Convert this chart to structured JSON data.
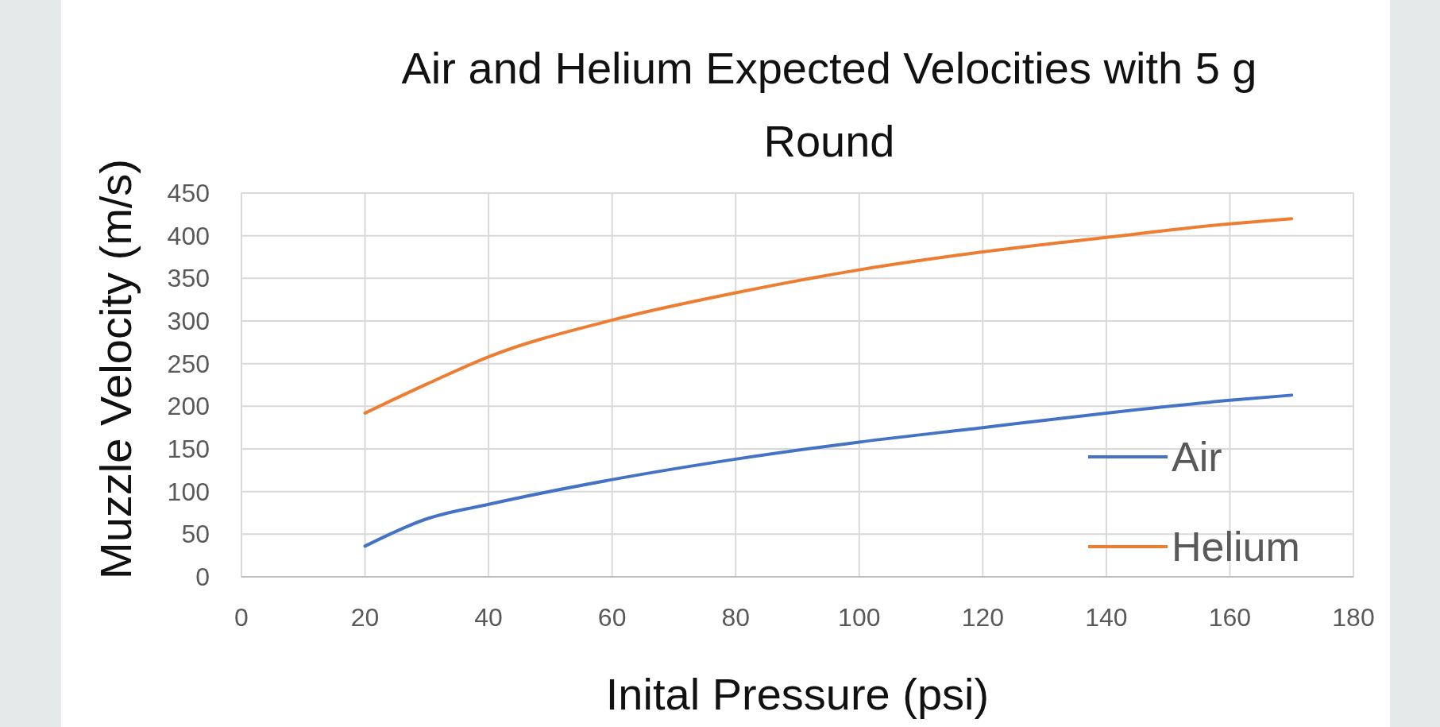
{
  "chart_data": {
    "type": "line",
    "title": "Air and Helium Expected Velocities with 5 g Round",
    "xlabel": "Inital Pressure (psi)",
    "ylabel": "Muzzle Velocity (m/s)",
    "xlim": [
      0,
      180
    ],
    "xticks": [
      0,
      20,
      40,
      60,
      80,
      100,
      120,
      140,
      160,
      180
    ],
    "ylim": [
      0,
      450
    ],
    "yticks": [
      0,
      50,
      100,
      150,
      200,
      250,
      300,
      350,
      400,
      450
    ],
    "grid": true,
    "legend": "bottom right",
    "marker": "none",
    "line_style": "solid",
    "series": [
      {
        "name": "Air",
        "color": "#4472c4",
        "x": [
          20,
          30,
          40,
          60,
          80,
          100,
          120,
          140,
          160,
          170
        ],
        "values": [
          36,
          68,
          85,
          114,
          138,
          158,
          175,
          192,
          207,
          213
        ]
      },
      {
        "name": "Helium",
        "color": "#ed7d31",
        "x": [
          20,
          30,
          40,
          60,
          80,
          100,
          120,
          140,
          160,
          170
        ],
        "values": [
          192,
          226,
          258,
          301,
          333,
          360,
          381,
          398,
          414,
          420
        ]
      }
    ]
  }
}
